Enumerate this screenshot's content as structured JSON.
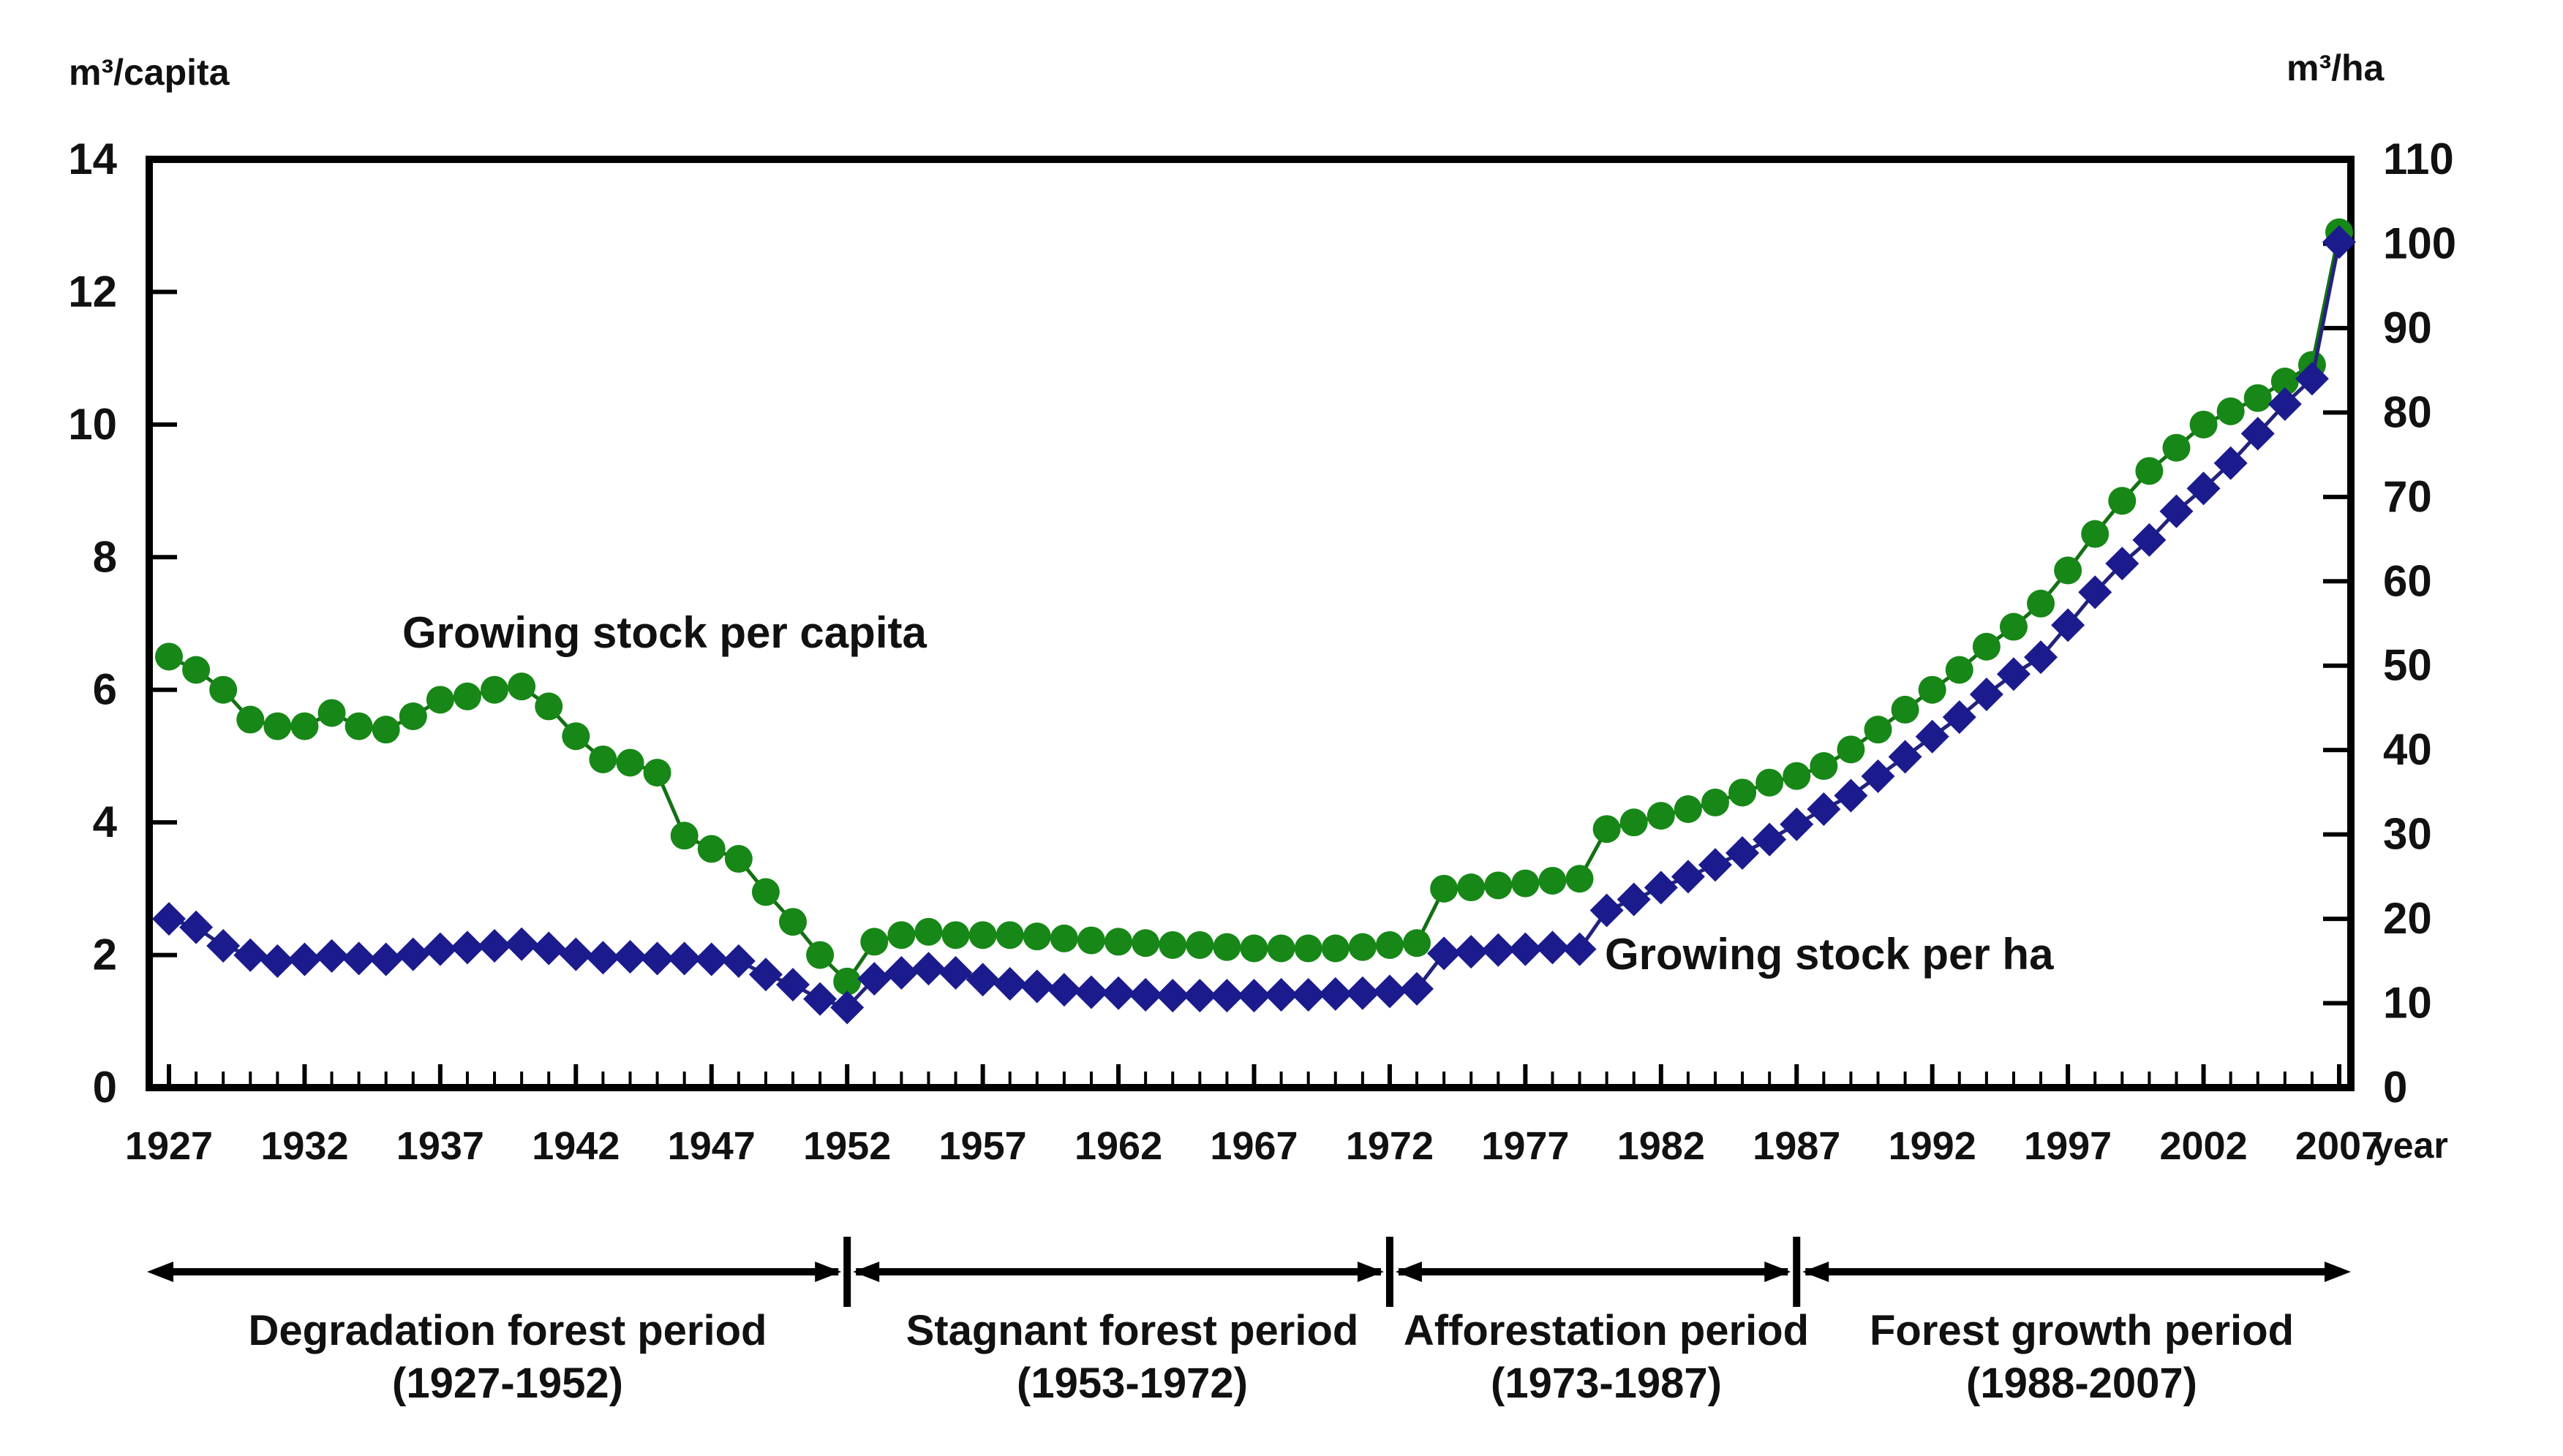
{
  "chart_data": {
    "type": "line",
    "title": "",
    "left_axis": {
      "label": "m³/capita",
      "min": 0,
      "max": 14,
      "ticks": [
        0,
        2,
        4,
        6,
        8,
        10,
        12,
        14
      ]
    },
    "right_axis": {
      "label": "m³/ha",
      "min": 0,
      "max": 110,
      "ticks": [
        0,
        10,
        20,
        30,
        40,
        50,
        60,
        70,
        80,
        90,
        100,
        110
      ]
    },
    "x_axis": {
      "label": "year",
      "min": 1927,
      "max": 2007,
      "tick_step_labeled": 5,
      "tick_labels": [
        1927,
        1932,
        1937,
        1942,
        1947,
        1952,
        1957,
        1962,
        1967,
        1972,
        1977,
        1982,
        1987,
        1992,
        1997,
        2002,
        2007
      ]
    },
    "x": [
      1927,
      1928,
      1929,
      1930,
      1931,
      1932,
      1933,
      1934,
      1935,
      1936,
      1937,
      1938,
      1939,
      1940,
      1941,
      1942,
      1943,
      1944,
      1945,
      1946,
      1947,
      1948,
      1949,
      1950,
      1951,
      1952,
      1953,
      1954,
      1955,
      1956,
      1957,
      1958,
      1959,
      1960,
      1961,
      1962,
      1963,
      1964,
      1965,
      1966,
      1967,
      1968,
      1969,
      1970,
      1971,
      1972,
      1973,
      1974,
      1975,
      1976,
      1977,
      1978,
      1979,
      1980,
      1981,
      1982,
      1983,
      1984,
      1985,
      1986,
      1987,
      1988,
      1989,
      1990,
      1991,
      1992,
      1993,
      1994,
      1995,
      1996,
      1997,
      1998,
      1999,
      2000,
      2001,
      2002,
      2003,
      2004,
      2005,
      2006,
      2007
    ],
    "series": [
      {
        "name": "Growing stock per capita",
        "axis": "left",
        "unit": "m³/capita",
        "marker": "circle",
        "color": "#178717",
        "line_color": "#147014",
        "values": [
          6.5,
          6.3,
          6.0,
          5.55,
          5.45,
          5.45,
          5.65,
          5.45,
          5.4,
          5.6,
          5.85,
          5.9,
          6.0,
          6.05,
          5.75,
          5.3,
          4.95,
          4.9,
          4.75,
          3.8,
          3.6,
          3.45,
          2.95,
          2.5,
          2.0,
          1.6,
          2.2,
          2.3,
          2.35,
          2.3,
          2.3,
          2.3,
          2.28,
          2.25,
          2.22,
          2.2,
          2.18,
          2.15,
          2.15,
          2.12,
          2.1,
          2.1,
          2.1,
          2.1,
          2.12,
          2.15,
          2.18,
          3.0,
          3.02,
          3.05,
          3.08,
          3.12,
          3.15,
          3.9,
          4.0,
          4.1,
          4.2,
          4.3,
          4.45,
          4.6,
          4.7,
          4.85,
          5.1,
          5.4,
          5.7,
          6.0,
          6.3,
          6.65,
          6.95,
          7.3,
          7.8,
          8.35,
          8.85,
          9.3,
          9.65,
          10.0,
          10.2,
          10.4,
          10.65,
          10.9,
          12.9
        ]
      },
      {
        "name": "Growing stock per ha",
        "axis": "right",
        "unit": "m³/ha",
        "marker": "diamond",
        "color": "#1b1b8e",
        "line_color": "#23237a",
        "values": [
          20.0,
          19.0,
          16.8,
          15.7,
          15.0,
          15.2,
          15.6,
          15.3,
          15.2,
          15.8,
          16.4,
          16.6,
          16.8,
          17.0,
          16.5,
          15.8,
          15.4,
          15.5,
          15.3,
          15.3,
          15.2,
          15.0,
          13.4,
          12.2,
          10.5,
          9.5,
          12.9,
          13.6,
          14.1,
          13.6,
          12.8,
          12.3,
          12.0,
          11.6,
          11.3,
          11.2,
          11.0,
          10.9,
          10.9,
          10.9,
          10.9,
          11.0,
          11.0,
          11.1,
          11.2,
          11.4,
          11.7,
          15.9,
          16.1,
          16.3,
          16.4,
          16.6,
          16.4,
          21.0,
          22.3,
          23.7,
          25.0,
          26.4,
          27.8,
          29.4,
          31.2,
          33.0,
          34.6,
          36.9,
          39.2,
          41.6,
          43.9,
          46.6,
          49.0,
          51.0,
          54.8,
          58.7,
          62.1,
          64.9,
          68.3,
          71.0,
          74.0,
          77.5,
          81.0,
          84.0,
          100.2
        ]
      }
    ],
    "series_labels": {
      "capita": "Growing stock per capita",
      "ha": "Growing stock per ha"
    },
    "periods": [
      {
        "label": "Degradation forest period",
        "range": "(1927-1952)",
        "start_year": 1927,
        "end_year": 1952
      },
      {
        "label": "Stagnant forest period",
        "range": "(1953-1972)",
        "start_year": 1953,
        "end_year": 1972
      },
      {
        "label": "Afforestation period",
        "range": "(1973-1987)",
        "start_year": 1973,
        "end_year": 1987
      },
      {
        "label": "Forest growth period",
        "range": "(1988-2007)",
        "start_year": 1988,
        "end_year": 2007
      }
    ],
    "grid": false,
    "legend_position": "inline-annotations"
  }
}
